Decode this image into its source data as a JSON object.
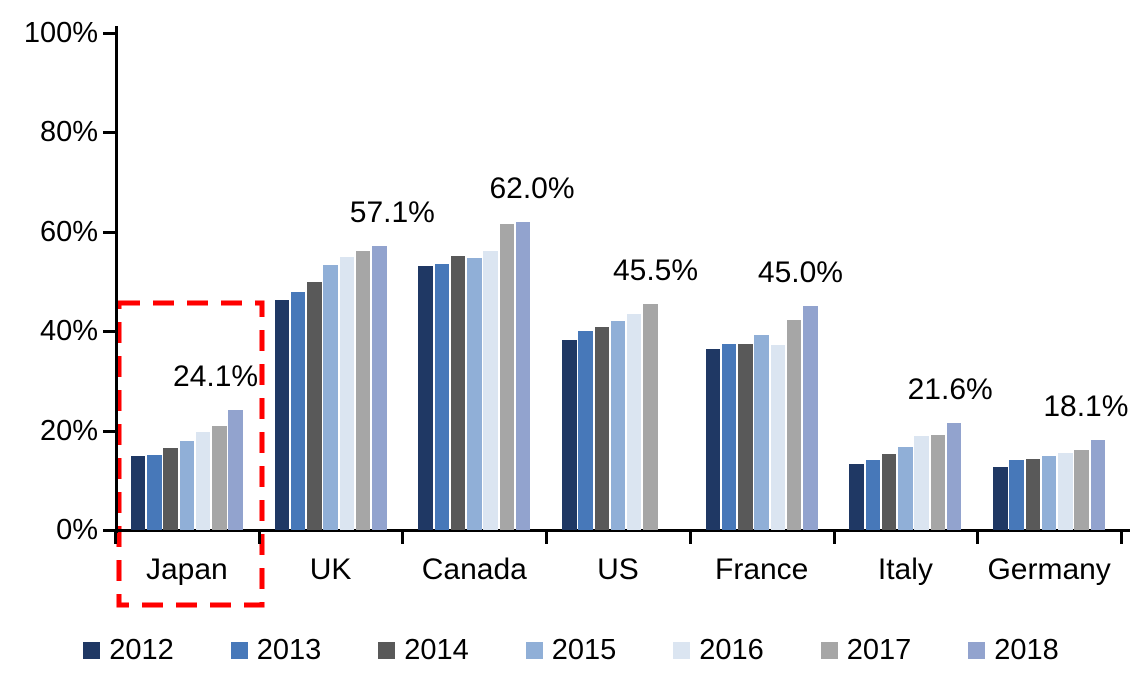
{
  "chart_data": {
    "type": "bar",
    "title": "",
    "categories": [
      "Japan",
      "UK",
      "Canada",
      "US",
      "France",
      "Italy",
      "Germany"
    ],
    "series": [
      {
        "name": "2012",
        "color": "#1F3864",
        "values": [
          14.8,
          46.3,
          53.1,
          38.2,
          36.5,
          13.3,
          12.6
        ]
      },
      {
        "name": "2013",
        "color": "#4778B9",
        "values": [
          15.0,
          47.9,
          53.6,
          40.0,
          37.5,
          14.0,
          14.0
        ]
      },
      {
        "name": "2014",
        "color": "#595959",
        "values": [
          16.5,
          50.0,
          55.1,
          40.9,
          37.5,
          15.2,
          14.3
        ]
      },
      {
        "name": "2015",
        "color": "#90AFD7",
        "values": [
          17.9,
          53.3,
          54.7,
          42.0,
          39.2,
          16.8,
          14.8
        ]
      },
      {
        "name": "2016",
        "color": "#DBE5F1",
        "values": [
          19.8,
          55.0,
          56.2,
          43.5,
          37.2,
          19.0,
          15.4
        ]
      },
      {
        "name": "2017",
        "color": "#A6A6A6",
        "values": [
          20.9,
          56.1,
          61.6,
          45.5,
          42.3,
          19.2,
          16.0
        ]
      },
      {
        "name": "2018",
        "color": "#92A3CE",
        "values": [
          24.1,
          57.1,
          62.0,
          null,
          45.0,
          21.6,
          18.1
        ]
      }
    ],
    "data_labels": [
      "24.1%",
      "57.1%",
      "62.0%",
      "45.5%",
      "45.0%",
      "21.6%",
      "18.1%"
    ],
    "xlabel": "",
    "ylabel": "",
    "ylim": [
      0,
      100
    ],
    "ytick_labels": [
      "0%",
      "20%",
      "40%",
      "60%",
      "80%",
      "100%"
    ],
    "ytick_values": [
      0,
      20,
      40,
      60,
      80,
      100
    ],
    "grid": false,
    "legend_position": "bottom",
    "highlight": {
      "category": "Japan",
      "style": "red-dashed-rectangle",
      "color": "#FF0000"
    }
  },
  "legend": {
    "items": [
      {
        "label": "2012",
        "color": "#1F3864"
      },
      {
        "label": "2013",
        "color": "#4778B9"
      },
      {
        "label": "2014",
        "color": "#595959"
      },
      {
        "label": "2015",
        "color": "#90AFD7"
      },
      {
        "label": "2016",
        "color": "#DBE5F1"
      },
      {
        "label": "2017",
        "color": "#A6A6A6"
      },
      {
        "label": "2018",
        "color": "#92A3CE"
      }
    ]
  }
}
